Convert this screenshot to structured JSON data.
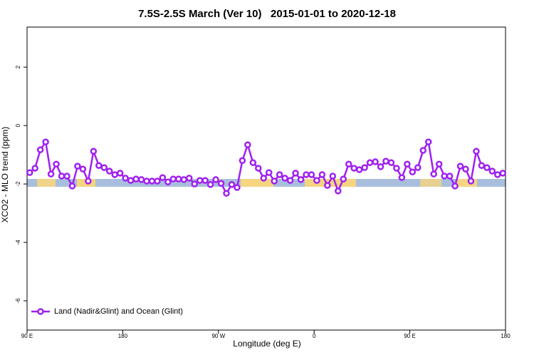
{
  "chart_data": {
    "type": "line",
    "title": "7.5S-2.5S March (Ver 10)   2015-01-01 to 2020-12-18",
    "x_label": "Longitude (deg E)",
    "y_label": "XCO2 - MLO trend (ppm)",
    "xlim": [
      90,
      540
    ],
    "ylim": [
      -7,
      3.37
    ],
    "xticks": [
      {
        "value": 90,
        "label": "90 E"
      },
      180,
      {
        "value": 270,
        "label": "90 W"
      },
      {
        "value": 360,
        "label": "0"
      },
      {
        "value": 450,
        "label": "90 E"
      },
      {
        "value": 540,
        "label": "180"
      }
    ],
    "yticks": [
      -6,
      -4,
      -2,
      0,
      2
    ],
    "legend": "bottom-left",
    "x": [
      92.5,
      97.5,
      102.5,
      107.5,
      112.5,
      117.5,
      122.5,
      127.5,
      132.5,
      137.5,
      142.5,
      147.5,
      152.5,
      157.5,
      162.5,
      167.5,
      172.5,
      177.5,
      182.5,
      187.5,
      192.5,
      197.5,
      202.5,
      207.5,
      212.5,
      217.5,
      222.5,
      227.5,
      232.5,
      237.5,
      242.5,
      247.5,
      252.5,
      257.5,
      262.5,
      267.5,
      272.5,
      277.5,
      282.5,
      287.5,
      292.5,
      297.5,
      302.5,
      307.5,
      312.5,
      317.5,
      322.5,
      327.5,
      332.5,
      337.5,
      342.5,
      347.5,
      352.5,
      357.5,
      362.5,
      367.5,
      372.5,
      377.5,
      382.5,
      387.5,
      392.5,
      397.5,
      402.5,
      407.5,
      412.5,
      417.5,
      422.5,
      427.5,
      432.5,
      437.5,
      442.5,
      447.5,
      452.5,
      457.5,
      462.5,
      467.5,
      472.5,
      477.5,
      482.5,
      487.5,
      492.5,
      497.5,
      502.5,
      507.5,
      512.5,
      517.5,
      522.5,
      527.5,
      532.5,
      537.5
    ],
    "series": [
      {
        "name": "Land (Nadir&Glint) and Ocean (Glint)",
        "color": "#a020f0",
        "values": [
          -1.61,
          -1.46,
          -0.83,
          -0.56,
          -1.66,
          -1.32,
          -1.73,
          -1.73,
          -2.07,
          -1.39,
          -1.49,
          -1.9,
          -0.88,
          -1.37,
          -1.44,
          -1.56,
          -1.68,
          -1.63,
          -1.8,
          -1.88,
          -1.83,
          -1.85,
          -1.9,
          -1.9,
          -1.9,
          -1.78,
          -1.93,
          -1.83,
          -1.83,
          -1.85,
          -1.8,
          -2.0,
          -1.88,
          -1.88,
          -2.02,
          -1.85,
          -1.98,
          -2.32,
          -2.02,
          -2.12,
          -1.2,
          -0.66,
          -1.27,
          -1.46,
          -1.8,
          -1.61,
          -1.9,
          -1.68,
          -1.8,
          -1.88,
          -1.63,
          -1.85,
          -1.68,
          -1.68,
          -1.88,
          -1.68,
          -2.05,
          -1.73,
          -2.24,
          -1.83,
          -1.32,
          -1.46,
          -1.51,
          -1.44,
          -1.27,
          -1.24,
          -1.41,
          -1.22,
          -1.27,
          -1.46,
          -1.78,
          -1.32,
          -1.59,
          -1.44,
          -0.85,
          -0.56,
          -1.66,
          -1.32,
          -1.73,
          -1.73,
          -2.07,
          -1.39,
          -1.49,
          -1.9,
          -0.88,
          -1.37,
          -1.44,
          -1.56,
          -1.68,
          -1.63
        ]
      }
    ]
  }
}
